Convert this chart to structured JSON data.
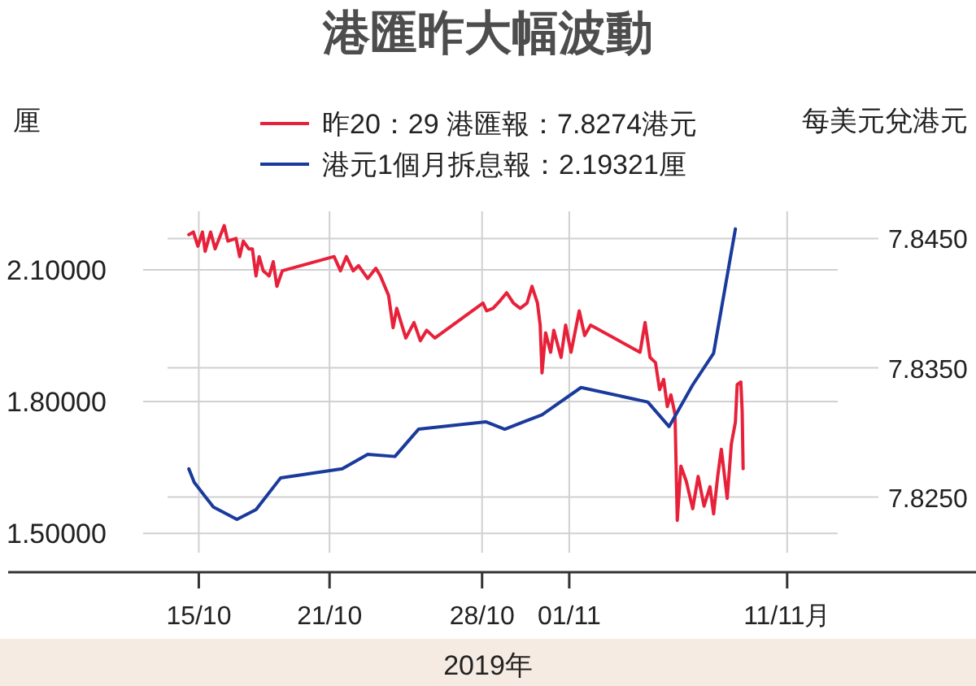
{
  "chart_data": {
    "type": "line",
    "title": "港匯昨大幅波動",
    "xlabel": "2019年",
    "ylabel": "厘",
    "y2label": "每美元兌港元",
    "xlim": [
      "2019-10-06T06:00",
      "2019-11-19T16:00"
    ],
    "xticks": [
      {
        "value": "2019-10-15",
        "label": "15/10"
      },
      {
        "value": "2019-10-21",
        "label": "21/10"
      },
      {
        "value": "2019-10-28",
        "label": "28/10"
      },
      {
        "value": "2019-11-01",
        "label": "01/11"
      },
      {
        "value": "2019-11-11",
        "label": "11/11月"
      }
    ],
    "ylim": [
      1.456,
      2.233
    ],
    "yticks": [
      {
        "value": 1.5,
        "label": "1.50000"
      },
      {
        "value": 1.8,
        "label": "1.80000"
      },
      {
        "value": 2.1,
        "label": "2.10000"
      }
    ],
    "y2lim": [
      7.8207,
      7.8471
    ],
    "y2ticks": [
      {
        "value": 7.825,
        "label": "7.8250"
      },
      {
        "value": 7.835,
        "label": "7.8350"
      },
      {
        "value": 7.845,
        "label": "7.8450"
      }
    ],
    "grid": true,
    "legend": "top",
    "series": [
      {
        "name": "昨20：29  港匯報：7.8274港元",
        "color": "#e8213a",
        "axis": "y2",
        "x": [
          "2019-10-14T13:00",
          "2019-10-14T18:00",
          "2019-10-14T23:00",
          "2019-10-15T04:00",
          "2019-10-15T07:00",
          "2019-10-15T13:00",
          "2019-10-15T18:00",
          "2019-10-16T04:00",
          "2019-10-16T08:00",
          "2019-10-16T17:00",
          "2019-10-16T21:00",
          "2019-10-17T01:00",
          "2019-10-17T07:00",
          "2019-10-17T11:00",
          "2019-10-17T15:00",
          "2019-10-17T18:30",
          "2019-10-17T23:00",
          "2019-10-18T05:30",
          "2019-10-18T10:00",
          "2019-10-18T14:00",
          "2019-10-18T20:00",
          "2019-10-21T05:00",
          "2019-10-21T12:00",
          "2019-10-21T18:30",
          "2019-10-22T02:00",
          "2019-10-22T08:00",
          "2019-10-22T18:00",
          "2019-10-23T03:00",
          "2019-10-23T08:00",
          "2019-10-23T17:00",
          "2019-10-23T22:00",
          "2019-10-24T02:00",
          "2019-10-24T12:00",
          "2019-10-24T21:00",
          "2019-10-25T04:00",
          "2019-10-25T11:00",
          "2019-10-25T20:00",
          "2019-10-28T01:00",
          "2019-10-28T05:00",
          "2019-10-28T12:00",
          "2019-10-28T20:00",
          "2019-10-29T03:00",
          "2019-10-29T10:30",
          "2019-10-29T18:00",
          "2019-10-30T01:30",
          "2019-10-30T07:00",
          "2019-10-30T13:00",
          "2019-10-30T16:00",
          "2019-10-30T18:00",
          "2019-10-30T22:00",
          "2019-10-31T03:30",
          "2019-10-31T07:00",
          "2019-10-31T15:00",
          "2019-10-31T20:00",
          "2019-11-01T02:00",
          "2019-11-01T11:00",
          "2019-11-01T17:00",
          "2019-11-01T23:30",
          "2019-11-04T06:00",
          "2019-11-04T11:30",
          "2019-11-04T17:00",
          "2019-11-04T23:00",
          "2019-11-05T03:30",
          "2019-11-05T08:00",
          "2019-11-05T12:00",
          "2019-11-05T16:00",
          "2019-11-05T20:30",
          "2019-11-05T23:00",
          "2019-11-06T03:00",
          "2019-11-06T09:00",
          "2019-11-06T16:00",
          "2019-11-06T22:00",
          "2019-11-07T04:30",
          "2019-11-07T11:00",
          "2019-11-07T15:00",
          "2019-11-07T19:30",
          "2019-11-07T23:30",
          "2019-11-08T06:00",
          "2019-11-08T10:30",
          "2019-11-08T15:00",
          "2019-11-08T17:00",
          "2019-11-08T21:00",
          "2019-11-08T22:30",
          "2019-11-08T23:30"
        ],
        "values": [
          7.8453,
          7.8455,
          7.8444,
          7.8455,
          7.844,
          7.8455,
          7.8442,
          7.846,
          7.8448,
          7.845,
          7.8436,
          7.8448,
          7.8442,
          7.8442,
          7.8421,
          7.8436,
          7.8425,
          7.8421,
          7.8432,
          7.8413,
          7.8425,
          7.8436,
          7.8425,
          7.8436,
          7.8425,
          7.8429,
          7.8419,
          7.8427,
          7.8421,
          7.8406,
          7.8381,
          7.8396,
          7.8373,
          7.8385,
          7.8371,
          7.8379,
          7.8373,
          7.84,
          7.8394,
          7.8396,
          7.8402,
          7.8408,
          7.84,
          7.8396,
          7.84,
          7.8413,
          7.84,
          7.8383,
          7.8346,
          7.8377,
          7.8362,
          7.8379,
          7.8358,
          7.8383,
          7.8362,
          7.8394,
          7.8375,
          7.8383,
          7.8362,
          7.8385,
          7.8358,
          7.8354,
          7.8333,
          7.8341,
          7.832,
          7.8329,
          7.8314,
          7.8232,
          7.8274,
          7.8262,
          7.8241,
          7.8266,
          7.8243,
          7.8258,
          7.8237,
          7.8266,
          7.8287,
          7.8249,
          7.8291,
          7.8308,
          7.8337,
          7.8339,
          7.8316,
          7.8272
        ]
      },
      {
        "name": "港元1個月拆息報：2.19321厘",
        "color": "#1a3a9c",
        "x": [
          "2019-10-14T13:00",
          "2019-10-14T19:00",
          "2019-10-15T16:00",
          "2019-10-16T18:00",
          "2019-10-17T15:00",
          "2019-10-18T18:00",
          "2019-10-21T14:00",
          "2019-10-22T18:00",
          "2019-10-24T00:00",
          "2019-10-25T02:00",
          "2019-10-28T04:00",
          "2019-10-29T01:00",
          "2019-10-29T22:00",
          "2019-10-30T18:00",
          "2019-11-01T13:00",
          "2019-11-04T14:30",
          "2019-11-05T14:00",
          "2019-11-06T16:00",
          "2019-11-07T15:00",
          "2019-11-08T15:00"
        ],
        "values": [
          1.647,
          1.616,
          1.56,
          1.532,
          1.554,
          1.626,
          1.647,
          1.68,
          1.675,
          1.737,
          1.754,
          1.737,
          1.754,
          1.77,
          1.832,
          1.799,
          1.743,
          1.838,
          1.91,
          2.193
        ]
      }
    ]
  }
}
